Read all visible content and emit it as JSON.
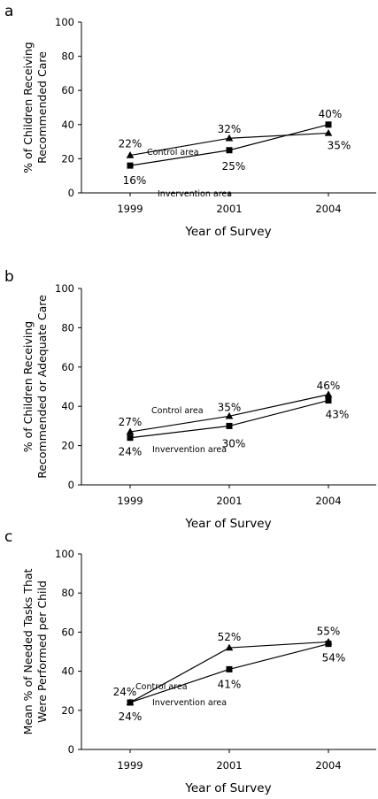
{
  "chart_data": [
    {
      "type": "line",
      "panel_label": "a",
      "x": [
        "1999",
        "2001",
        "2004"
      ],
      "xlabel": "Year of Survey",
      "ylabel": [
        "% of Children Receiving",
        "Recommended Care"
      ],
      "ylim": [
        0,
        100
      ],
      "yticks": [
        "0",
        "20",
        "40",
        "60",
        "80",
        "100"
      ],
      "grid": false,
      "series": [
        {
          "name": "Control area",
          "marker": "triangle",
          "values": [
            22,
            32,
            35
          ],
          "labels": [
            "22%",
            "32%",
            "35%"
          ]
        },
        {
          "name": "Invervention area",
          "marker": "square",
          "values": [
            16,
            25,
            40
          ],
          "labels": [
            "16%",
            "25%",
            "40%"
          ]
        }
      ]
    },
    {
      "type": "line",
      "panel_label": "b",
      "x": [
        "1999",
        "2001",
        "2004"
      ],
      "xlabel": "Year of Survey",
      "ylabel": [
        "% of Children Receiving",
        "Recommended or Adequate Care"
      ],
      "ylim": [
        0,
        100
      ],
      "yticks": [
        "0",
        "20",
        "40",
        "60",
        "80",
        "100"
      ],
      "grid": false,
      "series": [
        {
          "name": "Control area",
          "marker": "triangle",
          "values": [
            27,
            35,
            46
          ],
          "labels": [
            "27%",
            "35%",
            "46%"
          ]
        },
        {
          "name": "Invervention area",
          "marker": "square",
          "values": [
            24,
            30,
            43
          ],
          "labels": [
            "24%",
            "30%",
            "43%"
          ]
        }
      ]
    },
    {
      "type": "line",
      "panel_label": "c",
      "x": [
        "1999",
        "2001",
        "2004"
      ],
      "xlabel": "Year of Survey",
      "ylabel": [
        "Mean % of Needed Tasks That",
        "Were Performed per Child"
      ],
      "ylim": [
        0,
        100
      ],
      "yticks": [
        "0",
        "20",
        "40",
        "60",
        "80",
        "100"
      ],
      "grid": false,
      "series": [
        {
          "name": "Control area",
          "marker": "triangle",
          "values": [
            24,
            52,
            55
          ],
          "labels": [
            "24%",
            "52%",
            "55%"
          ]
        },
        {
          "name": "Invervention area",
          "marker": "square",
          "values": [
            24,
            41,
            54
          ],
          "labels": [
            "24%",
            "41%",
            "54%"
          ]
        }
      ]
    }
  ]
}
